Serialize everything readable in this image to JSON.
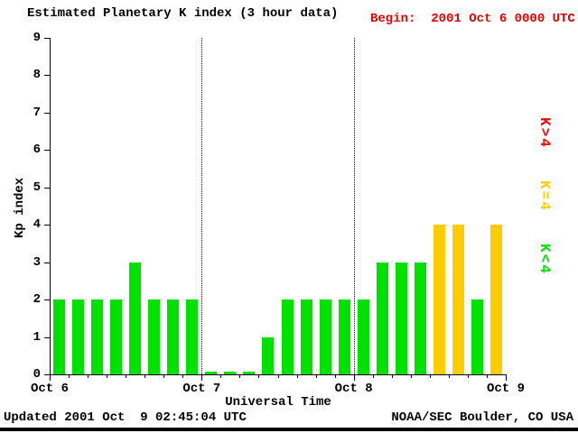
{
  "header": {
    "title": "Estimated Planetary K index (3 hour data)",
    "begin_label": "Begin:  2001 Oct 6 0000 UTC"
  },
  "footer": {
    "updated": "Updated 2001 Oct  9 02:45:04 UTC",
    "source": "NOAA/SEC Boulder, CO USA"
  },
  "colors": {
    "begin_text": "#e60000",
    "bar_low": "#00e100",
    "bar_mid": "#ffcc00",
    "bar_high": "#ff0000",
    "axis": "#000000",
    "background": "#ffffff"
  },
  "legend": {
    "position": "right",
    "items": [
      {
        "label": "K>4",
        "color": "#ff0000"
      },
      {
        "label": "K=4",
        "color": "#ffcc00"
      },
      {
        "label": "K<4",
        "color": "#00e100"
      }
    ]
  },
  "chart_data": {
    "type": "bar",
    "title": "Estimated Planetary K index (3 hour data)",
    "xlabel": "Universal Time",
    "ylabel": "Kp index",
    "ylim": [
      0,
      9
    ],
    "y_ticks": [
      0,
      1,
      2,
      3,
      4,
      5,
      6,
      7,
      8,
      9
    ],
    "x_tick_labels": [
      "Oct 6",
      "Oct 7",
      "Oct 8",
      "Oct 9"
    ],
    "bars_per_day": 8,
    "interval_hours": 3,
    "values": [
      2,
      2,
      2,
      2,
      3,
      2,
      2,
      2,
      0,
      0,
      0,
      1,
      2,
      2,
      2,
      2,
      2,
      3,
      3,
      3,
      4,
      4,
      2,
      4
    ],
    "color_rules": {
      "below_4": "#00e100",
      "equal_4": "#ffcc00",
      "above_4": "#ff0000"
    },
    "grid": "dotted vertical lines at day boundaries",
    "legend_position": "right"
  }
}
